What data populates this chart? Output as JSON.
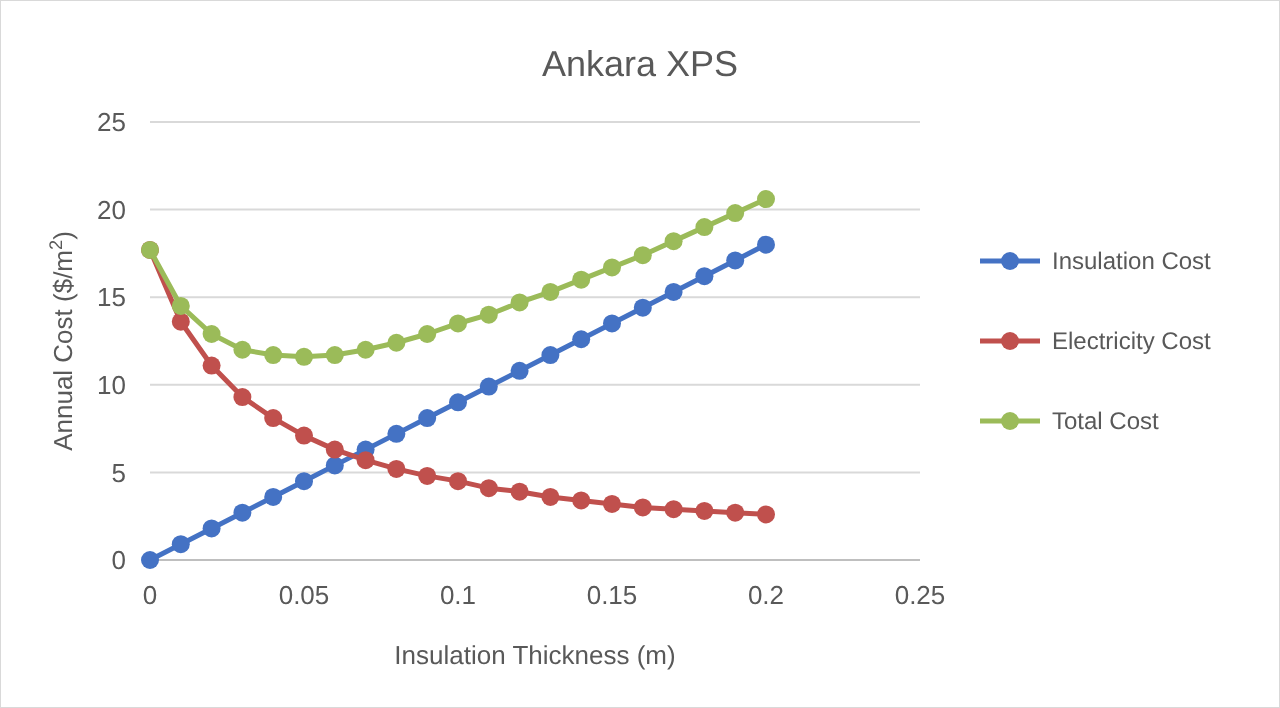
{
  "chart_data": {
    "type": "line",
    "title": "Ankara XPS",
    "xlabel": "Insulation Thickness (m)",
    "ylabel": "Annual Cost ($/m$^{2}$)",
    "x": [
      0,
      0.01,
      0.02,
      0.03,
      0.04,
      0.05,
      0.06,
      0.07,
      0.08,
      0.09,
      0.1,
      0.11,
      0.12,
      0.13,
      0.14,
      0.15,
      0.16,
      0.17,
      0.18,
      0.19,
      0.2
    ],
    "series": [
      {
        "name": "Insulation Cost",
        "color": "#4472c4",
        "values": [
          0,
          0.9,
          1.8,
          2.7,
          3.6,
          4.5,
          5.4,
          6.3,
          7.2,
          8.1,
          9,
          9.9,
          10.8,
          11.7,
          12.6,
          13.5,
          14.4,
          15.3,
          16.2,
          17.1,
          18
        ]
      },
      {
        "name": "Electricity Cost",
        "color": "#c0504d",
        "values": [
          17.7,
          13.6,
          11.1,
          9.3,
          8.1,
          7.1,
          6.3,
          5.7,
          5.2,
          4.8,
          4.5,
          4.1,
          3.9,
          3.6,
          3.4,
          3.2,
          3.0,
          2.9,
          2.8,
          2.7,
          2.6
        ]
      },
      {
        "name": "Total Cost",
        "color": "#9bbb59",
        "values": [
          17.7,
          14.5,
          12.9,
          12.0,
          11.7,
          11.6,
          11.7,
          12.0,
          12.4,
          12.9,
          13.5,
          14.0,
          14.7,
          15.3,
          16.0,
          16.7,
          17.4,
          18.2,
          19.0,
          19.8,
          20.6
        ]
      }
    ],
    "xlim": [
      0,
      0.25
    ],
    "xticks": [
      0,
      0.05,
      0.1,
      0.15,
      0.2,
      0.25
    ],
    "ylim": [
      0,
      25
    ],
    "yticks": [
      0,
      5,
      10,
      15,
      20,
      25
    ],
    "grid": "y",
    "legend": "right",
    "marker": "circle",
    "line_style": "solid"
  }
}
